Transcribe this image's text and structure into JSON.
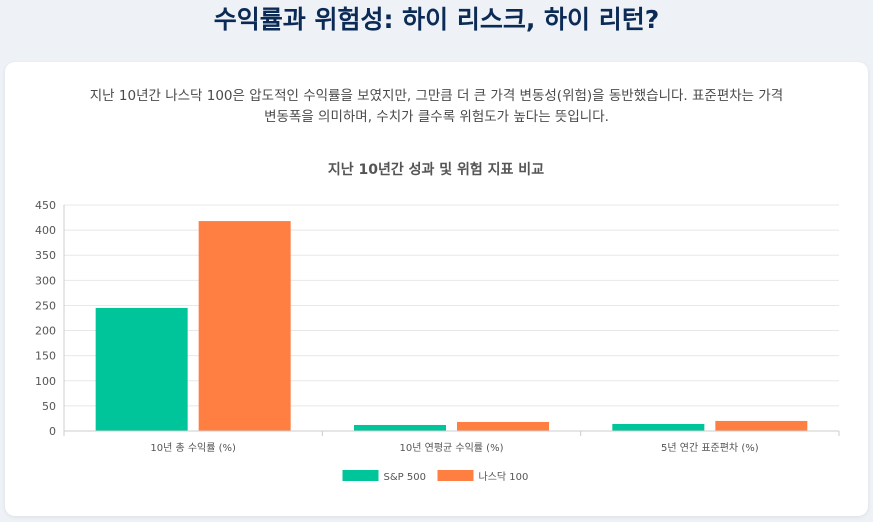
{
  "header": {
    "title": "수익률과 위험성: 하이 리스크, 하이 리턴?"
  },
  "intro": {
    "text": "지난 10년간 나스닥 100은 압도적인 수익률을 보였지만, 그만큼 더 큰 가격 변동성(위험)을 동반했습니다. 표준편차는 가격 변동폭을 의미하며, 수치가 클수록 위험도가 높다는 뜻입니다."
  },
  "colors": {
    "sp500": "#00c49a",
    "nasdaq": "#ff7f42",
    "grid": "#e8e8e8",
    "axis": "#cccccc"
  },
  "chart_data": {
    "type": "bar",
    "title": "지난 10년간 성과 및 위험 지표 비교",
    "categories": [
      "10년 총 수익률 (%)",
      "10년 연평균 수익률 (%)",
      "5년 연간 표준편차 (%)"
    ],
    "series": [
      {
        "name": "S&P 500",
        "values": [
          245,
          12,
          14
        ]
      },
      {
        "name": "나스닥 100",
        "values": [
          418,
          18,
          20
        ]
      }
    ],
    "ylim": [
      0,
      450
    ],
    "yticks": [
      0,
      50,
      100,
      150,
      200,
      250,
      300,
      350,
      400,
      450
    ],
    "grid": true,
    "legend_position": "bottom"
  }
}
